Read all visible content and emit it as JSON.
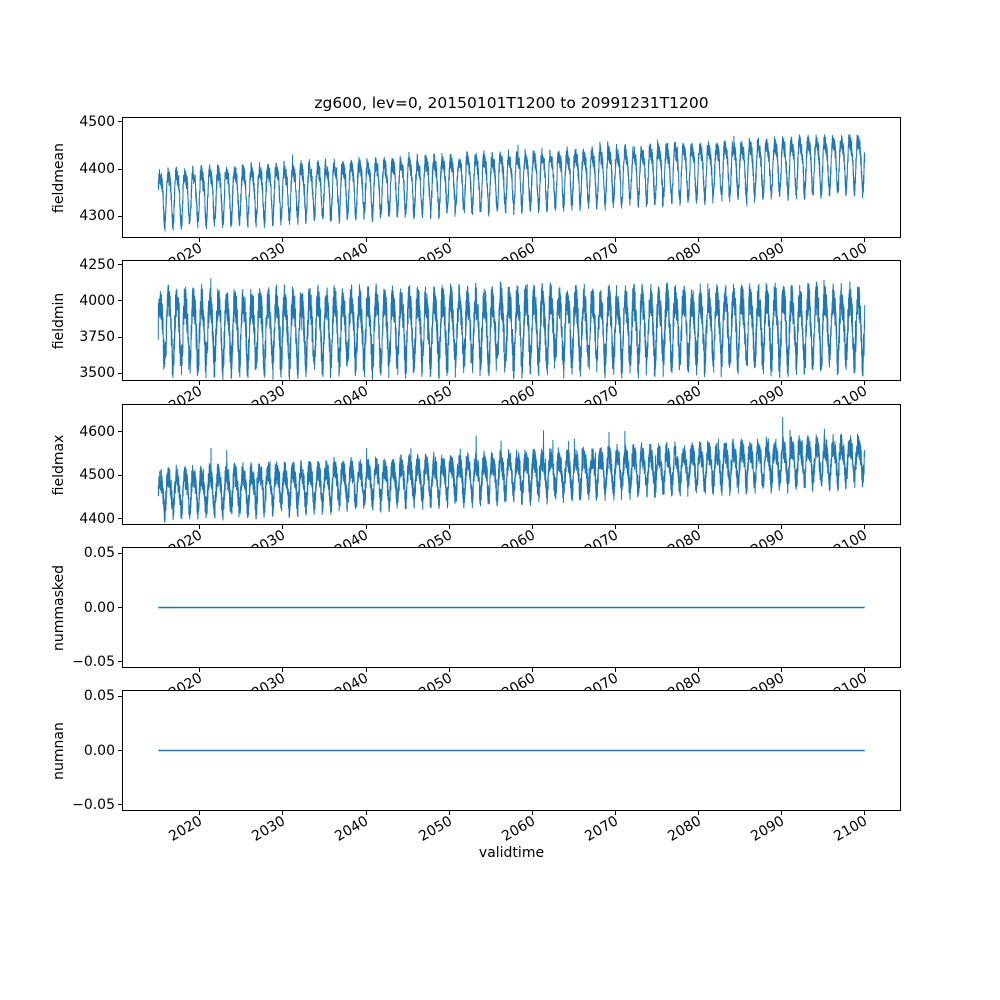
{
  "chart_data": {
    "type": "line",
    "title": "zg600, lev=0, 20150101T1200 to 20991231T1200",
    "xlabel": "validtime",
    "grid": false,
    "legend": false,
    "line_color": "#1f77b4",
    "axis_color": "#000000",
    "background_color": "#ffffff",
    "x": {
      "start": 2015.0,
      "end": 2100.0,
      "samples_per_year": 73,
      "xlim": [
        2010.75,
        2104.25
      ],
      "xticks": [
        2020,
        2030,
        2040,
        2050,
        2060,
        2070,
        2080,
        2090,
        2100
      ],
      "xtick_labels": [
        "2020",
        "2030",
        "2040",
        "2050",
        "2060",
        "2070",
        "2080",
        "2090",
        "2100"
      ],
      "xtick_rotation": 30
    },
    "subplots": [
      {
        "ylabel": "fieldmean",
        "ylim": [
          4256,
          4508
        ],
        "yticks": [
          {
            "value": 4300,
            "label": "4300"
          },
          {
            "value": 4400,
            "label": "4400"
          },
          {
            "value": 4500,
            "label": "4500"
          }
        ],
        "line_width": 1,
        "series": {
          "kind": "seasonal_noise",
          "base_start": 4345,
          "base_end": 4420,
          "season_amp": 50,
          "harmonic2_amp": 14,
          "noise_amp": 18,
          "tail_amp": 18,
          "tail_sides": 2,
          "seed": 42
        }
      },
      {
        "ylabel": "fieldmin",
        "ylim": [
          3455,
          4275
        ],
        "yticks": [
          {
            "value": 3500,
            "label": "3500"
          },
          {
            "value": 3750,
            "label": "3750"
          },
          {
            "value": 4000,
            "label": "4000"
          },
          {
            "value": 4250,
            "label": "4250"
          }
        ],
        "line_width": 1,
        "series": {
          "kind": "seasonal_noise",
          "base_start": 3815,
          "base_end": 3835,
          "season_amp": 210,
          "harmonic2_amp": 40,
          "noise_amp": 120,
          "tail_amp": 110,
          "tail_sides": 2,
          "seed": 7
        }
      },
      {
        "ylabel": "fieldmax",
        "ylim": [
          4388,
          4662
        ],
        "yticks": [
          {
            "value": 4400,
            "label": "4400"
          },
          {
            "value": 4500,
            "label": "4500"
          },
          {
            "value": 4600,
            "label": "4600"
          }
        ],
        "line_width": 1,
        "series": {
          "kind": "seasonal_noise",
          "base_start": 4463,
          "base_end": 4540,
          "season_amp": 38,
          "harmonic2_amp": 10,
          "noise_amp": 28,
          "tail_amp": 60,
          "tail_sides": 1,
          "seed": 13
        }
      },
      {
        "ylabel": "nummasked",
        "ylim": [
          -0.055,
          0.055
        ],
        "yticks": [
          {
            "value": -0.05,
            "label": "−0.05"
          },
          {
            "value": 0,
            "label": "0.00"
          },
          {
            "value": 0.05,
            "label": "0.05"
          }
        ],
        "line_width": 1.5,
        "series": {
          "kind": "constant",
          "value": 0
        }
      },
      {
        "ylabel": "numnan",
        "ylim": [
          -0.055,
          0.055
        ],
        "yticks": [
          {
            "value": -0.05,
            "label": "−0.05"
          },
          {
            "value": 0,
            "label": "0.00"
          },
          {
            "value": 0.05,
            "label": "0.05"
          }
        ],
        "line_width": 1.5,
        "series": {
          "kind": "constant",
          "value": 0
        }
      }
    ]
  }
}
